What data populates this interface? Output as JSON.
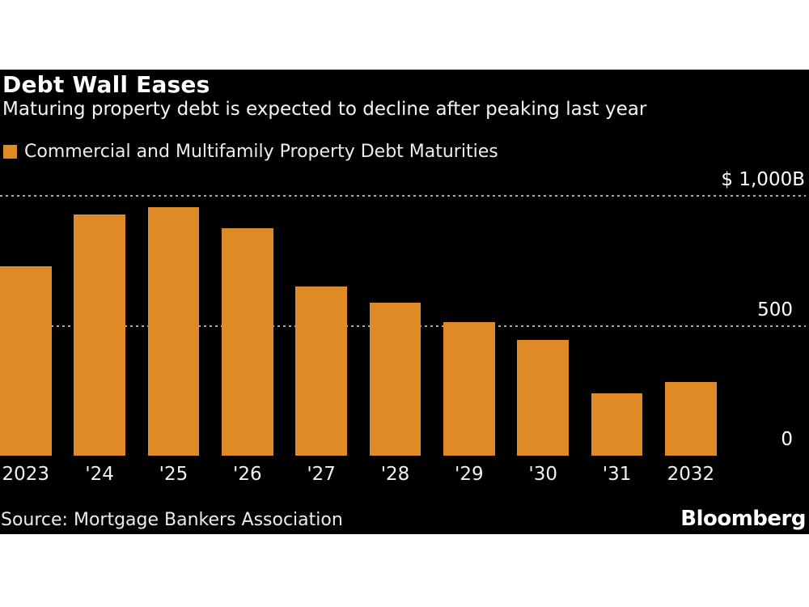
{
  "page": {
    "background": "#ffffff",
    "panel_background": "#000000",
    "text_color": "#ffffff"
  },
  "chart_data": {
    "type": "bar",
    "title": "Debt Wall Eases",
    "subtitle": "Maturing property debt is expected to decline after peaking last year",
    "legend": {
      "label": "Commercial and Multifamily Property Debt Maturities",
      "color": "#DD8A27",
      "position": "top-left"
    },
    "categories": [
      "2023",
      "'24",
      "'25",
      "'26",
      "'27",
      "'28",
      "'29",
      "'30",
      "'31",
      "2032"
    ],
    "values": [
      730,
      929,
      957,
      875,
      650,
      590,
      515,
      445,
      240,
      285
    ],
    "unit": "$B",
    "ylim": [
      0,
      1000
    ],
    "y_ticks": [
      {
        "value": 1000,
        "label": "$ 1,000B"
      },
      {
        "value": 500,
        "label": "500"
      },
      {
        "value": 0,
        "label": "0"
      }
    ],
    "grid": "horizontal-dotted",
    "bar_color": "#DD8A27",
    "source": "Source: Mortgage Bankers Association",
    "brand": "Bloomberg"
  }
}
